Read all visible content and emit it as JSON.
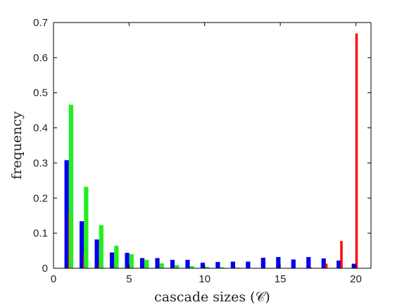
{
  "chart_data": {
    "type": "bar",
    "xlabel": "cascade sizes (𝒞)",
    "ylabel": "frequency",
    "xlim": [
      0,
      21
    ],
    "ylim": [
      0,
      0.7
    ],
    "xticks": [
      0,
      5,
      10,
      15,
      20
    ],
    "yticks": [
      0,
      0.1,
      0.2,
      0.3,
      0.4,
      0.5,
      0.6,
      0.7
    ],
    "grid": false,
    "legend": "none",
    "x": [
      1,
      2,
      3,
      4,
      5,
      6,
      7,
      8,
      9,
      10,
      11,
      12,
      13,
      14,
      15,
      16,
      17,
      18,
      19,
      20
    ],
    "series": [
      {
        "color": "#0000ee",
        "values": [
          0.308,
          0.134,
          0.082,
          0.045,
          0.044,
          0.029,
          0.029,
          0.024,
          0.024,
          0.016,
          0.018,
          0.019,
          0.019,
          0.03,
          0.032,
          0.025,
          0.032,
          0.028,
          0.022,
          0.013
        ]
      },
      {
        "color": "#ff0000",
        "values": [
          0.158,
          0.042,
          0.017,
          0.005,
          0.002,
          0.001,
          0.001,
          0.001,
          0.001,
          0.001,
          0.001,
          0.001,
          0.001,
          0.001,
          0.001,
          0.001,
          0.002,
          0.013,
          0.078,
          0.669
        ]
      },
      {
        "color": "#22ee22",
        "values": [
          0.466,
          0.232,
          0.123,
          0.064,
          0.04,
          0.024,
          0.014,
          0.009,
          0.006,
          0.004,
          0.003,
          0.002,
          0.001,
          0.001,
          0.001,
          0.001,
          0.001,
          0.001,
          0.001,
          0.001
        ]
      }
    ]
  }
}
